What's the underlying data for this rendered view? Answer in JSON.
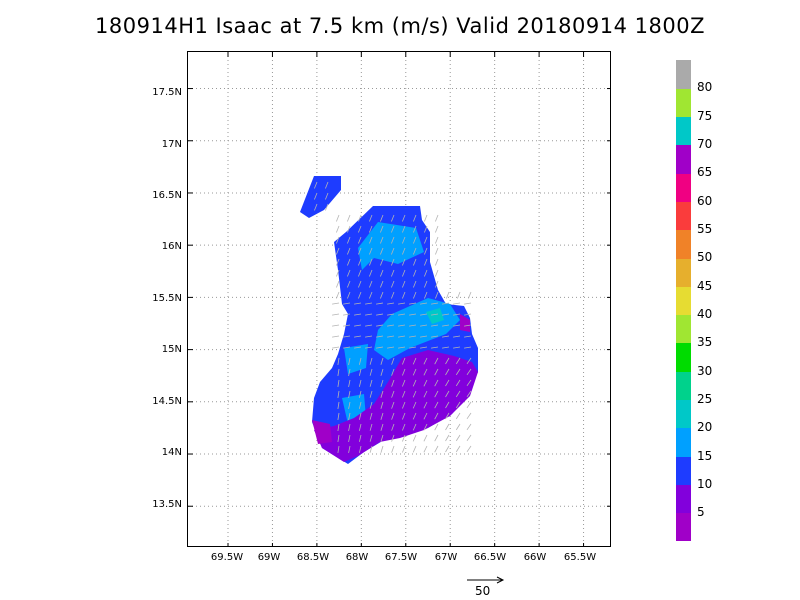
{
  "title": "180914H1 Isaac at 7.5 km (m/s) Valid 20180914  1800Z",
  "map": {
    "lat_labels": [
      "17.5N",
      "17N",
      "16.5N",
      "16N",
      "15.5N",
      "15N",
      "14.5N",
      "14N",
      "13.5N"
    ],
    "lon_labels": [
      "69.5W",
      "69W",
      "68.5W",
      "68W",
      "67.5W",
      "67W",
      "66.5W",
      "66W",
      "65.5W"
    ],
    "lat_range": [
      13.1,
      17.85
    ],
    "lon_range": [
      -69.95,
      -65.18
    ],
    "grid": "dotted",
    "field_colors": {
      "band_0_5": "#a000c8",
      "band_5_10": "#8200dc",
      "band_10_15": "#1e3cff",
      "band_15_20": "#00a0ff",
      "band_20_25": "#00c8c8"
    }
  },
  "colorbar": {
    "labels": [
      "5",
      "10",
      "15",
      "20",
      "25",
      "30",
      "35",
      "40",
      "45",
      "50",
      "55",
      "60",
      "65",
      "70",
      "75",
      "80"
    ],
    "colors": [
      "#a000c8",
      "#8200dc",
      "#1e3cff",
      "#00a0ff",
      "#00c8c8",
      "#00d28c",
      "#00dc00",
      "#a0e632",
      "#e6dc32",
      "#e6af2d",
      "#f08228",
      "#fa3c3c",
      "#f00082",
      "#a000c8",
      "#00c8c8",
      "#a0e632",
      "#aaaaaa"
    ]
  },
  "reference_vector": {
    "label": "50"
  }
}
